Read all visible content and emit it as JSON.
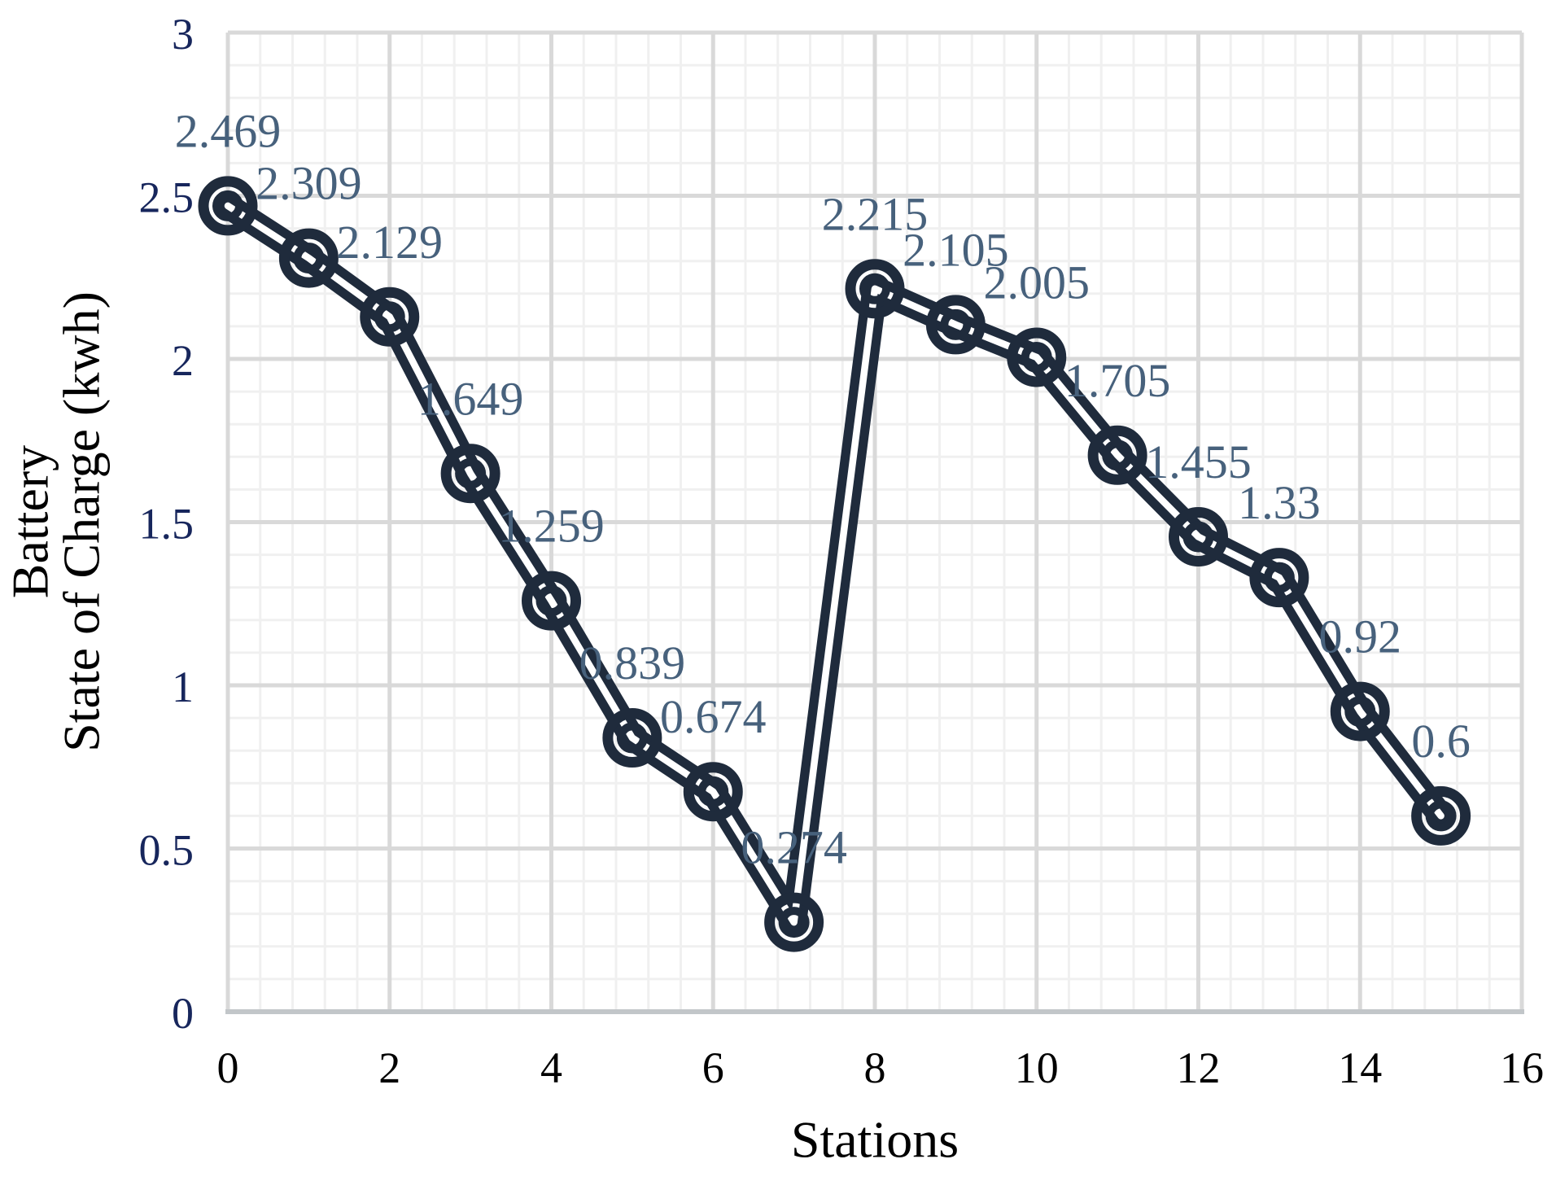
{
  "chart_data": {
    "type": "line",
    "title": "",
    "xlabel": "Stations",
    "ylabel": "Battery State of Charge (kwh)",
    "ylabel_lines": [
      "Battery",
      "State of Charge (kwh)"
    ],
    "x": [
      0,
      1,
      2,
      3,
      4,
      5,
      6,
      7,
      8,
      9,
      10,
      11,
      12,
      13,
      14,
      15
    ],
    "series": [
      {
        "name": "Battery State of Charge",
        "values": [
          2.469,
          2.309,
          2.129,
          1.649,
          1.259,
          0.839,
          0.674,
          0.274,
          2.215,
          2.105,
          2.005,
          1.705,
          1.455,
          1.33,
          0.92,
          0.6
        ]
      }
    ],
    "data_labels": [
      "2.469",
      "2.309",
      "2.129",
      "1.649",
      "1.259",
      "0.839",
      "0.674",
      "0.274",
      "2.215",
      "2.105",
      "2.005",
      "1.705",
      "1.455",
      "1.33",
      "0.92",
      "0.6"
    ],
    "x_ticks": [
      "0",
      "2",
      "4",
      "6",
      "8",
      "10",
      "12",
      "14",
      "16"
    ],
    "y_ticks": [
      "0",
      "0.5",
      "1",
      "1.5",
      "2",
      "2.5",
      "3"
    ],
    "xlim": [
      0,
      16
    ],
    "ylim": [
      0,
      3
    ],
    "x_major_unit": 2,
    "x_minor_unit": 0.4,
    "y_major_unit": 0.5,
    "y_minor_unit": 0.1,
    "grid": {
      "major": true,
      "minor": true
    },
    "legend": "none",
    "marker_style": "double-circle-ring",
    "line_style": "double-outline",
    "colors": {
      "line": "#1f2b3c",
      "line_core": "#ffffff",
      "marker": "#1f2b3c",
      "data_label": "#47617c",
      "y_tick": "#17265c",
      "x_tick": "#000000",
      "axis_title": "#000000",
      "grid_major": "#d9d9d9",
      "grid_minor": "#f0f0f0",
      "axis_line": "#c2c6c9",
      "background": "#ffffff"
    }
  }
}
